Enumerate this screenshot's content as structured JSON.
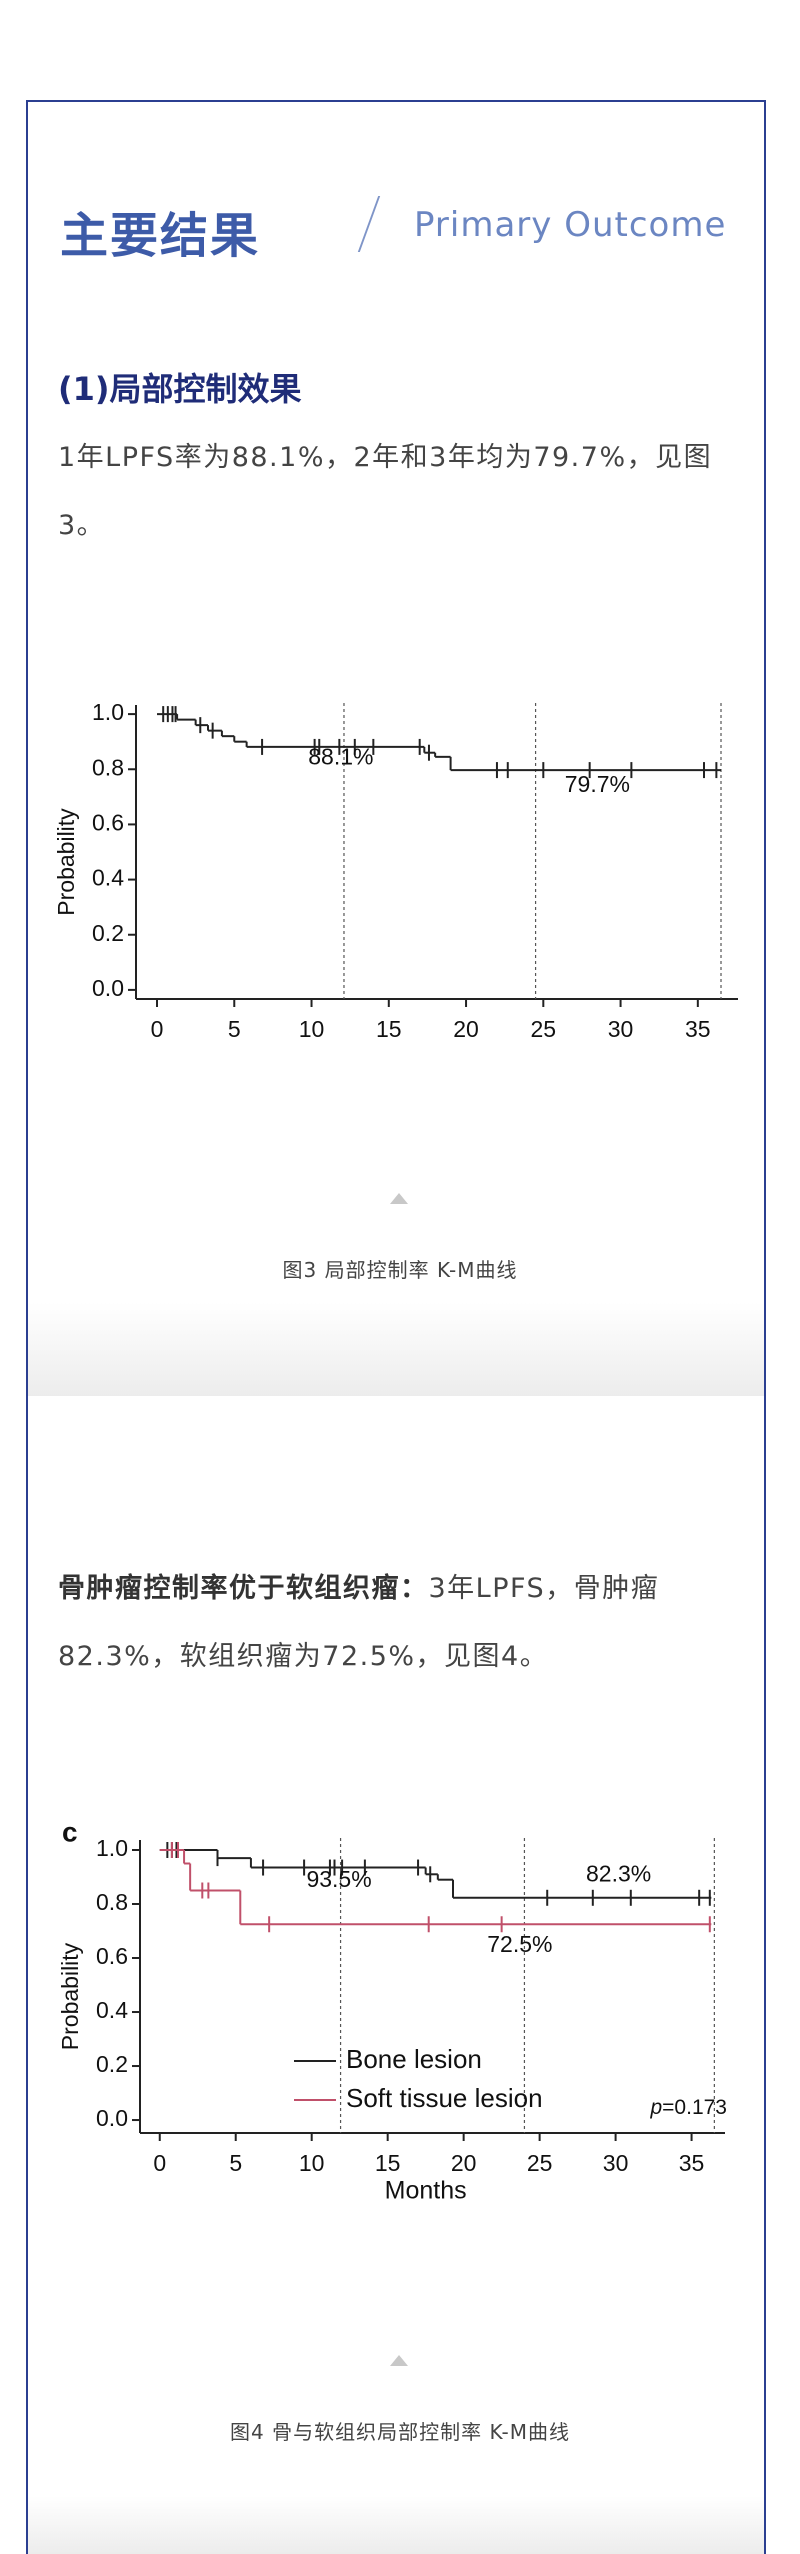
{
  "header": {
    "title": "主要结果",
    "subtitle": "Primary Outcome"
  },
  "section1": {
    "heading": "(1)局部控制效果",
    "text": "1年LPFS率为88.1%，2年和3年均为79.7%，见图3。",
    "caption": "图3 局部控制率 K-M曲线"
  },
  "section2": {
    "heading": "骨肿瘤控制率优于软组织瘤：",
    "text": "3年LPFS，骨肿瘤82.3%，软组织瘤为72.5%，见图4。",
    "caption": "图4 骨与软组织局部控制率 K-M曲线"
  },
  "chart_data": [
    {
      "type": "km",
      "ylabel": "Probability",
      "xlim": [
        -1.36,
        37.6
      ],
      "ylim": [
        -0.033,
        1.033
      ],
      "xticks": [
        0,
        5,
        10,
        15,
        20,
        25,
        30,
        35
      ],
      "yticks": [
        {
          "value": 0,
          "label": "0.0"
        },
        0.2,
        0.4,
        0.6,
        0.8,
        {
          "value": 1,
          "label": "1.0"
        }
      ],
      "reference_lines": [
        12.1,
        24.5,
        36.5
      ],
      "annotations": [
        "88.1%",
        "79.7%"
      ],
      "series": [
        {
          "color": "#222222",
          "x": [
            0,
            1.3,
            2.5,
            3.3,
            4.2,
            5,
            5.8,
            17.3,
            18,
            19,
            36.5
          ],
          "values": [
            1,
            0.98,
            0.96,
            0.94,
            0.92,
            0.9,
            0.881,
            0.86,
            0.845,
            0.797,
            0.797
          ],
          "censored": [
            0.4,
            0.7,
            1,
            1.2,
            2.8,
            3.6,
            6.8,
            10.2,
            10.5,
            11.8,
            12.8,
            14,
            17,
            17.6,
            22,
            22.7,
            25,
            28,
            30.7,
            35.4,
            36.2
          ]
        }
      ]
    },
    {
      "type": "km",
      "panel_label": "c",
      "xlabel": "Months",
      "ylabel": "Probability",
      "xlim": [
        -1.3,
        37.2
      ],
      "ylim": [
        -0.048,
        1.037
      ],
      "xticks": [
        0,
        5,
        10,
        15,
        20,
        25,
        30,
        35
      ],
      "yticks": [
        {
          "value": 0,
          "label": "0.0"
        },
        0.2,
        0.4,
        0.6,
        0.8,
        {
          "value": 1,
          "label": "1.0"
        }
      ],
      "reference_lines": [
        11.9,
        24,
        36.5
      ],
      "annotations": [
        "93.5%",
        "82.3%",
        "72.5%"
      ],
      "pvalue_symbol": "p",
      "pvalue_text": "=0.173",
      "series": [
        {
          "name": "Bone lesion",
          "color": "#222222",
          "x": [
            0,
            3.8,
            6,
            17.5,
            18.3,
            19.3,
            36.3
          ],
          "values": [
            1,
            0.97,
            0.935,
            0.91,
            0.89,
            0.823,
            0.823
          ],
          "censored": [
            0.5,
            0.8,
            1.1,
            3.8,
            6.8,
            9.5,
            11.2,
            11.5,
            12,
            13.5,
            17,
            17.8,
            25.5,
            28.5,
            31,
            35.5,
            36.2
          ]
        },
        {
          "name": "Soft tissue lesion",
          "color": "#c0506a",
          "x": [
            0,
            1.6,
            2,
            5.3,
            36.3
          ],
          "values": [
            1,
            0.95,
            0.85,
            0.725,
            0.725
          ],
          "censored": [
            0.8,
            1.2,
            2.8,
            3.2,
            7.2,
            17.7,
            22.5,
            36.2
          ]
        }
      ]
    }
  ]
}
